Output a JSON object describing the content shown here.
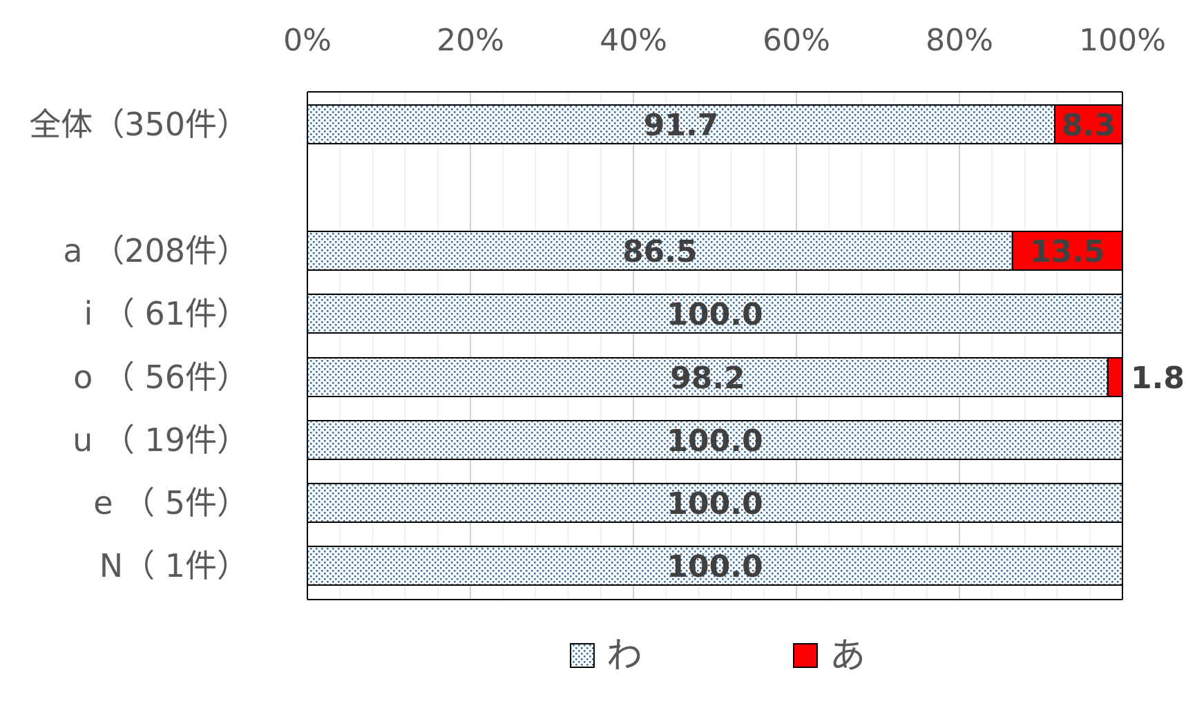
{
  "chart_data": {
    "type": "bar",
    "orientation": "horizontal",
    "stacked": "percent",
    "title": "",
    "xlabel": "",
    "ylabel": "",
    "xlim": [
      0,
      100
    ],
    "x_ticks": [
      "0%",
      "20%",
      "40%",
      "60%",
      "80%",
      "100%"
    ],
    "categories": [
      "全体（350件）",
      "",
      "a （208件）",
      "i （ 61件）",
      "o （ 56件）",
      "u （ 19件）",
      "e （ 5件）",
      "N（ 1件）"
    ],
    "series": [
      {
        "name": "わ",
        "values": [
          91.7,
          null,
          86.5,
          100.0,
          98.2,
          100.0,
          100.0,
          100.0
        ],
        "labels": [
          "91.7",
          "",
          "86.5",
          "100.0",
          "98.2",
          "100.0",
          "100.0",
          "100.0"
        ],
        "fill": "dotted-blue"
      },
      {
        "name": "あ",
        "values": [
          8.3,
          null,
          13.5,
          0,
          1.8,
          0,
          0,
          0
        ],
        "labels": [
          "8.3",
          "",
          "13.5",
          "",
          "1.8",
          "",
          "",
          ""
        ],
        "fill": "#ff0000"
      }
    ],
    "grid": true,
    "legend_position": "bottom"
  },
  "colors": {
    "dot": "#2e75b6",
    "red": "#ff0000",
    "text": "#595959",
    "data_label": "#404040",
    "grid": "#d9d9d9",
    "axis": "#000000"
  }
}
